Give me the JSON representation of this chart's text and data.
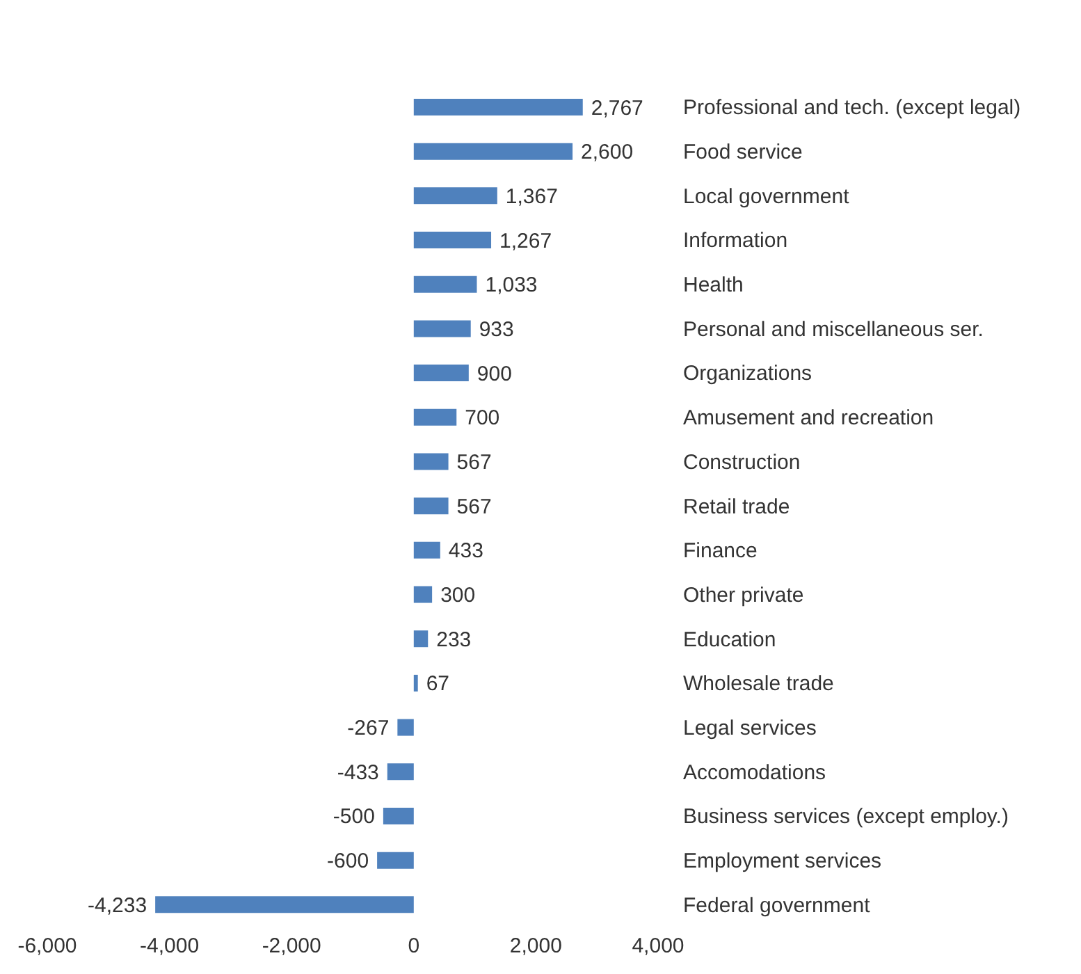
{
  "chart_data": {
    "type": "bar",
    "orientation": "horizontal",
    "categories": [
      "Professional and tech. (except legal)",
      "Food service",
      "Local government",
      "Information",
      "Health",
      "Personal and miscellaneous ser.",
      "Organizations",
      "Amusement and recreation",
      "Construction",
      "Retail trade",
      "Finance",
      "Other private",
      "Education",
      "Wholesale trade",
      "Legal services",
      "Accomodations",
      "Business services (except employ.)",
      "Employment services",
      "Federal government"
    ],
    "values": [
      2767,
      2600,
      1367,
      1267,
      1033,
      933,
      900,
      700,
      567,
      567,
      433,
      300,
      233,
      67,
      -267,
      -433,
      -500,
      -600,
      -4233
    ],
    "color": "#4f81bd",
    "xlim": [
      -6000,
      4000
    ],
    "xticks": [
      {
        "value": -6000,
        "label": "-6,000"
      },
      {
        "value": -4000,
        "label": "-4,000"
      },
      {
        "value": -2000,
        "label": "-2,000"
      },
      0,
      {
        "value": 2000,
        "label": "2,000"
      },
      {
        "value": 4000,
        "label": "4,000"
      }
    ],
    "value_labels": [
      "2,767",
      "2,600",
      "1,367",
      "1,267",
      "1,033",
      "933",
      "900",
      "700",
      "567",
      "567",
      "433",
      "300",
      "233",
      "67",
      "-267",
      "-433",
      "-500",
      "-600",
      "-4,233"
    ],
    "grid": false,
    "legend": false
  }
}
